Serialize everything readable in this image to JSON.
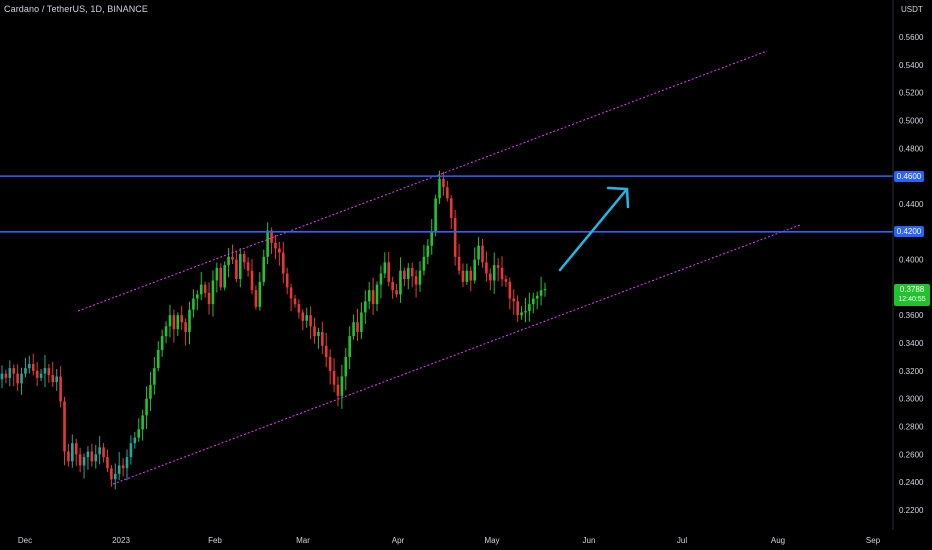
{
  "header": {
    "title": "Cardano / TetherUS, 1D, BINANCE"
  },
  "y_axis": {
    "unit": "USDT",
    "ticks": [
      "0.5600",
      "0.5400",
      "0.5200",
      "0.5000",
      "0.4800",
      "0.4400",
      "0.4000",
      "0.3600",
      "0.3400",
      "0.3200",
      "0.3000",
      "0.2800",
      "0.2600",
      "0.2400",
      "0.2200"
    ]
  },
  "x_axis": {
    "ticks": [
      "Dec",
      "2023",
      "Feb",
      "Mar",
      "Apr",
      "May",
      "Jun",
      "Jul",
      "Aug",
      "Sep"
    ]
  },
  "levels": [
    {
      "value": 0.46,
      "label": "0.4600",
      "color": "#2962ff"
    },
    {
      "value": 0.42,
      "label": "0.4200",
      "color": "#2962ff"
    }
  ],
  "current_price": {
    "value": "0.3788",
    "countdown": "12:40:55",
    "color": "#21c22d"
  },
  "colors": {
    "up": "#26a69a",
    "up_bright": "#22c32e",
    "down": "#e53935",
    "channel": "#e040fb",
    "arrow": "#22b8e6"
  },
  "chart_data": {
    "type": "candlestick",
    "title": "Cardano / TetherUS, 1D, BINANCE",
    "ylabel": "USDT",
    "ylim": [
      0.205,
      0.5785
    ],
    "x_ticks": [
      "Dec",
      "2023",
      "Feb",
      "Mar",
      "Apr",
      "May",
      "Jun",
      "Jul",
      "Aug",
      "Sep"
    ],
    "closes": [
      0.318,
      0.315,
      0.322,
      0.318,
      0.311,
      0.318,
      0.322,
      0.325,
      0.32,
      0.315,
      0.318,
      0.322,
      0.317,
      0.312,
      0.316,
      0.298,
      0.262,
      0.255,
      0.268,
      0.26,
      0.252,
      0.258,
      0.262,
      0.255,
      0.26,
      0.265,
      0.258,
      0.25,
      0.242,
      0.246,
      0.252,
      0.25,
      0.258,
      0.268,
      0.272,
      0.278,
      0.288,
      0.3,
      0.31,
      0.322,
      0.335,
      0.345,
      0.352,
      0.36,
      0.35,
      0.36,
      0.355,
      0.348,
      0.364,
      0.372,
      0.375,
      0.382,
      0.376,
      0.368,
      0.385,
      0.394,
      0.38,
      0.396,
      0.402,
      0.4,
      0.386,
      0.404,
      0.398,
      0.392,
      0.378,
      0.366,
      0.384,
      0.402,
      0.421,
      0.412,
      0.408,
      0.405,
      0.39,
      0.38,
      0.372,
      0.368,
      0.362,
      0.356,
      0.36,
      0.352,
      0.345,
      0.348,
      0.338,
      0.33,
      0.32,
      0.31,
      0.302,
      0.316,
      0.33,
      0.345,
      0.355,
      0.348,
      0.362,
      0.37,
      0.378,
      0.368,
      0.382,
      0.39,
      0.398,
      0.384,
      0.378,
      0.375,
      0.392,
      0.386,
      0.394,
      0.388,
      0.382,
      0.392,
      0.402,
      0.41,
      0.42,
      0.444,
      0.458,
      0.452,
      0.444,
      0.43,
      0.402,
      0.392,
      0.384,
      0.392,
      0.385,
      0.4,
      0.41,
      0.398,
      0.39,
      0.385,
      0.396,
      0.394,
      0.386,
      0.384,
      0.372,
      0.37,
      0.36,
      0.362,
      0.363,
      0.368,
      0.372,
      0.374,
      0.378,
      0.3788
    ],
    "levels": [
      0.46,
      0.42
    ],
    "last_price": 0.3788,
    "annotations": [
      "upper channel line",
      "lower channel line",
      "upward arrow"
    ]
  }
}
